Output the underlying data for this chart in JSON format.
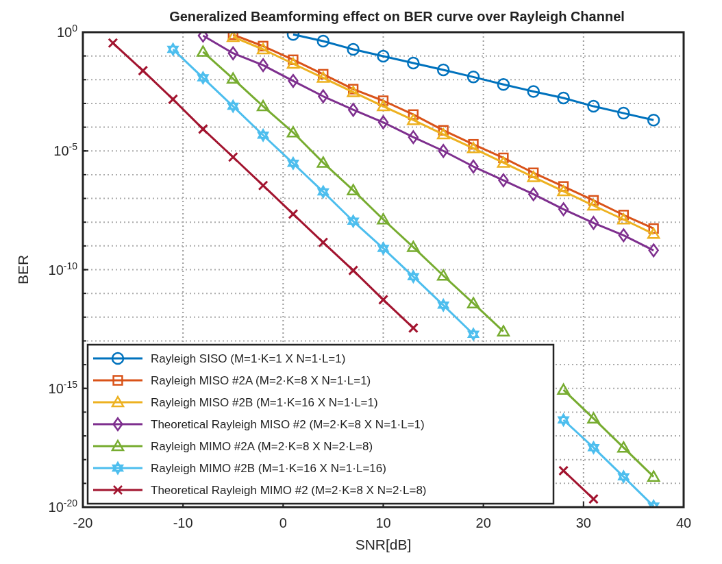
{
  "chart_data": {
    "type": "line",
    "title": "Generalized Beamforming effect on BER curve over Rayleigh Channel",
    "xlabel": "SNR[dB]",
    "ylabel": "BER",
    "log": "y",
    "grid": true,
    "legend": "bottom left",
    "line_style": "solid",
    "xlim": [
      -20,
      40
    ],
    "xticks": [
      -20,
      -10,
      0,
      10,
      20,
      30,
      40
    ],
    "ylim": [
      1e-20,
      1
    ],
    "yticks": [
      {
        "value": 1e-20,
        "label": "10$^{-20}$"
      },
      {
        "value": 1e-15,
        "label": "10$^{-15}$"
      },
      {
        "value": 1e-10,
        "label": "10$^{-10}$"
      },
      {
        "value": 1e-05,
        "label": "10$^{-5}$"
      },
      {
        "value": 1,
        "label": "10$^{0}$"
      }
    ],
    "series": [
      {
        "name": "Rayleigh SISO (M=1·K=1 X N=1·L=1)",
        "color": "#0072bd",
        "marker": "circle",
        "x": [
          1,
          4,
          7,
          10,
          13,
          16,
          19,
          22,
          25,
          28,
          31,
          34,
          37
        ],
        "values": [
          0.81,
          0.42,
          0.19,
          0.098,
          0.05,
          0.026,
          0.013,
          0.0063,
          0.0032,
          0.0017,
          0.00076,
          0.00039,
          0.0002
        ]
      },
      {
        "name": "Rayleigh MISO #2A (M=2·K=8 X N=1·L=1)",
        "color": "#d95319",
        "marker": "square",
        "x": [
          -5,
          -2,
          1,
          4,
          7,
          10,
          13,
          16,
          19,
          22,
          25,
          28,
          31,
          34,
          37
        ],
        "values": [
          0.79,
          0.26,
          0.069,
          0.017,
          0.004,
          0.0013,
          0.00034,
          7.4e-05,
          1.9e-05,
          5.1e-06,
          1.2e-06,
          3.2e-07,
          8.3e-08,
          2e-08,
          5.4e-09
        ]
      },
      {
        "name": "Rayleigh MISO #2B (M=1·K=16 X N=1·L=1)",
        "color": "#edb120",
        "marker": "triangle",
        "x": [
          -5,
          -2,
          1,
          4,
          7,
          10,
          13,
          16,
          19,
          22,
          25,
          28,
          31,
          34,
          37
        ],
        "values": [
          0.63,
          0.19,
          0.047,
          0.012,
          0.003,
          0.00076,
          0.0002,
          5e-05,
          1.3e-05,
          3.2e-06,
          7.9e-07,
          2e-07,
          5e-08,
          1.3e-08,
          3.2e-09
        ]
      },
      {
        "name": "Theoretical Rayleigh MISO #2 (M=2·K=8 X N=1·L=1)",
        "color": "#7e2f8e",
        "marker": "diamond",
        "x": [
          -8,
          -5,
          -2,
          1,
          4,
          7,
          10,
          13,
          16,
          19,
          22,
          25,
          28,
          31,
          34,
          37
        ],
        "values": [
          0.72,
          0.13,
          0.041,
          0.0089,
          0.002,
          0.00054,
          0.00016,
          3.8e-05,
          1e-05,
          2.2e-06,
          5.8e-07,
          1.5e-07,
          3.5e-08,
          9.3e-09,
          2.8e-09,
          6.5e-10
        ]
      },
      {
        "name": "Rayleigh MIMO #2A (M=2·K=8 X N=2·L=8)",
        "color": "#77ac30",
        "marker": "triangle",
        "x": [
          -8,
          -5,
          -2,
          1,
          4,
          7,
          10,
          13,
          16,
          19,
          22,
          25,
          28,
          31,
          34,
          37
        ],
        "values": [
          0.15,
          0.011,
          0.00076,
          6e-05,
          3.2e-06,
          2.2e-07,
          1.3e-08,
          8.9e-10,
          5.6e-11,
          3.8e-12,
          2.5e-13,
          null,
          8.7e-16,
          5.4e-17,
          3.2e-18,
          1.9e-19
        ]
      },
      {
        "name": "Rayleigh MIMO #2B (M=1·K=16 X N=1·L=16)",
        "color": "#4dbeee",
        "marker": "star",
        "x": [
          -11,
          -8,
          -5,
          -2,
          1,
          4,
          7,
          10,
          13,
          16,
          19,
          22,
          25,
          28,
          31,
          34,
          37
        ],
        "values": [
          0.19,
          0.012,
          0.00076,
          4.6e-05,
          3e-06,
          1.9e-07,
          1.1e-08,
          7.9e-10,
          5.1e-11,
          3.2e-12,
          1.9e-13,
          null,
          null,
          4.7e-17,
          3.2e-18,
          1.9e-19,
          1.1e-20
        ]
      },
      {
        "name": "Theoretical Rayleigh MIMO #2 (M=2·K=8 X N=2·L=8)",
        "color": "#a2142f",
        "marker": "cross",
        "x": [
          -17,
          -14,
          -11,
          -8,
          -5,
          -2,
          1,
          4,
          7,
          10,
          13,
          16,
          19,
          22,
          25,
          28,
          31
        ],
        "values": [
          0.35,
          0.024,
          0.0015,
          8.3e-05,
          5.5e-06,
          3.5e-07,
          2.2e-08,
          1.4e-09,
          9.3e-11,
          5.4e-12,
          3.5e-13,
          null,
          null,
          null,
          null,
          3.4e-19,
          2.2e-20
        ]
      }
    ]
  }
}
